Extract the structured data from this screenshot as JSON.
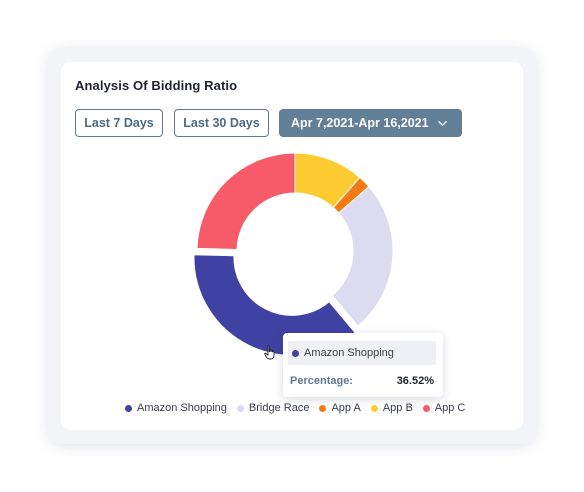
{
  "card": {
    "title": "Analysis Of Bidding Ratio"
  },
  "filters": {
    "last7_label": "Last 7 Days",
    "last30_label": "Last 30 Days",
    "range_label": "Apr 7,2021-Apr 16,2021",
    "range_icon": "chevron-down-icon"
  },
  "tooltip": {
    "series": "Amazon Shopping",
    "label": "Percentage:",
    "value": "36.52%"
  },
  "chart_data": {
    "type": "pie",
    "title": "Analysis Of Bidding Ratio",
    "categories": [
      "App B",
      "App A",
      "Bridge Race",
      "Amazon Shopping",
      "App C"
    ],
    "values": [
      11.5,
      2.1,
      25.3,
      36.52,
      24.58
    ],
    "colors": {
      "Amazon Shopping": "#3f42a3",
      "Bridge Race": "#dcdbf0",
      "App A": "#f57a14",
      "App B": "#fdcb30",
      "App C": "#f75a68"
    },
    "highlighted": "Amazon Shopping",
    "legend": {
      "position": "bottom",
      "items": [
        "Amazon Shopping",
        "Bridge Race",
        "App A",
        "App B",
        "App C"
      ]
    }
  }
}
